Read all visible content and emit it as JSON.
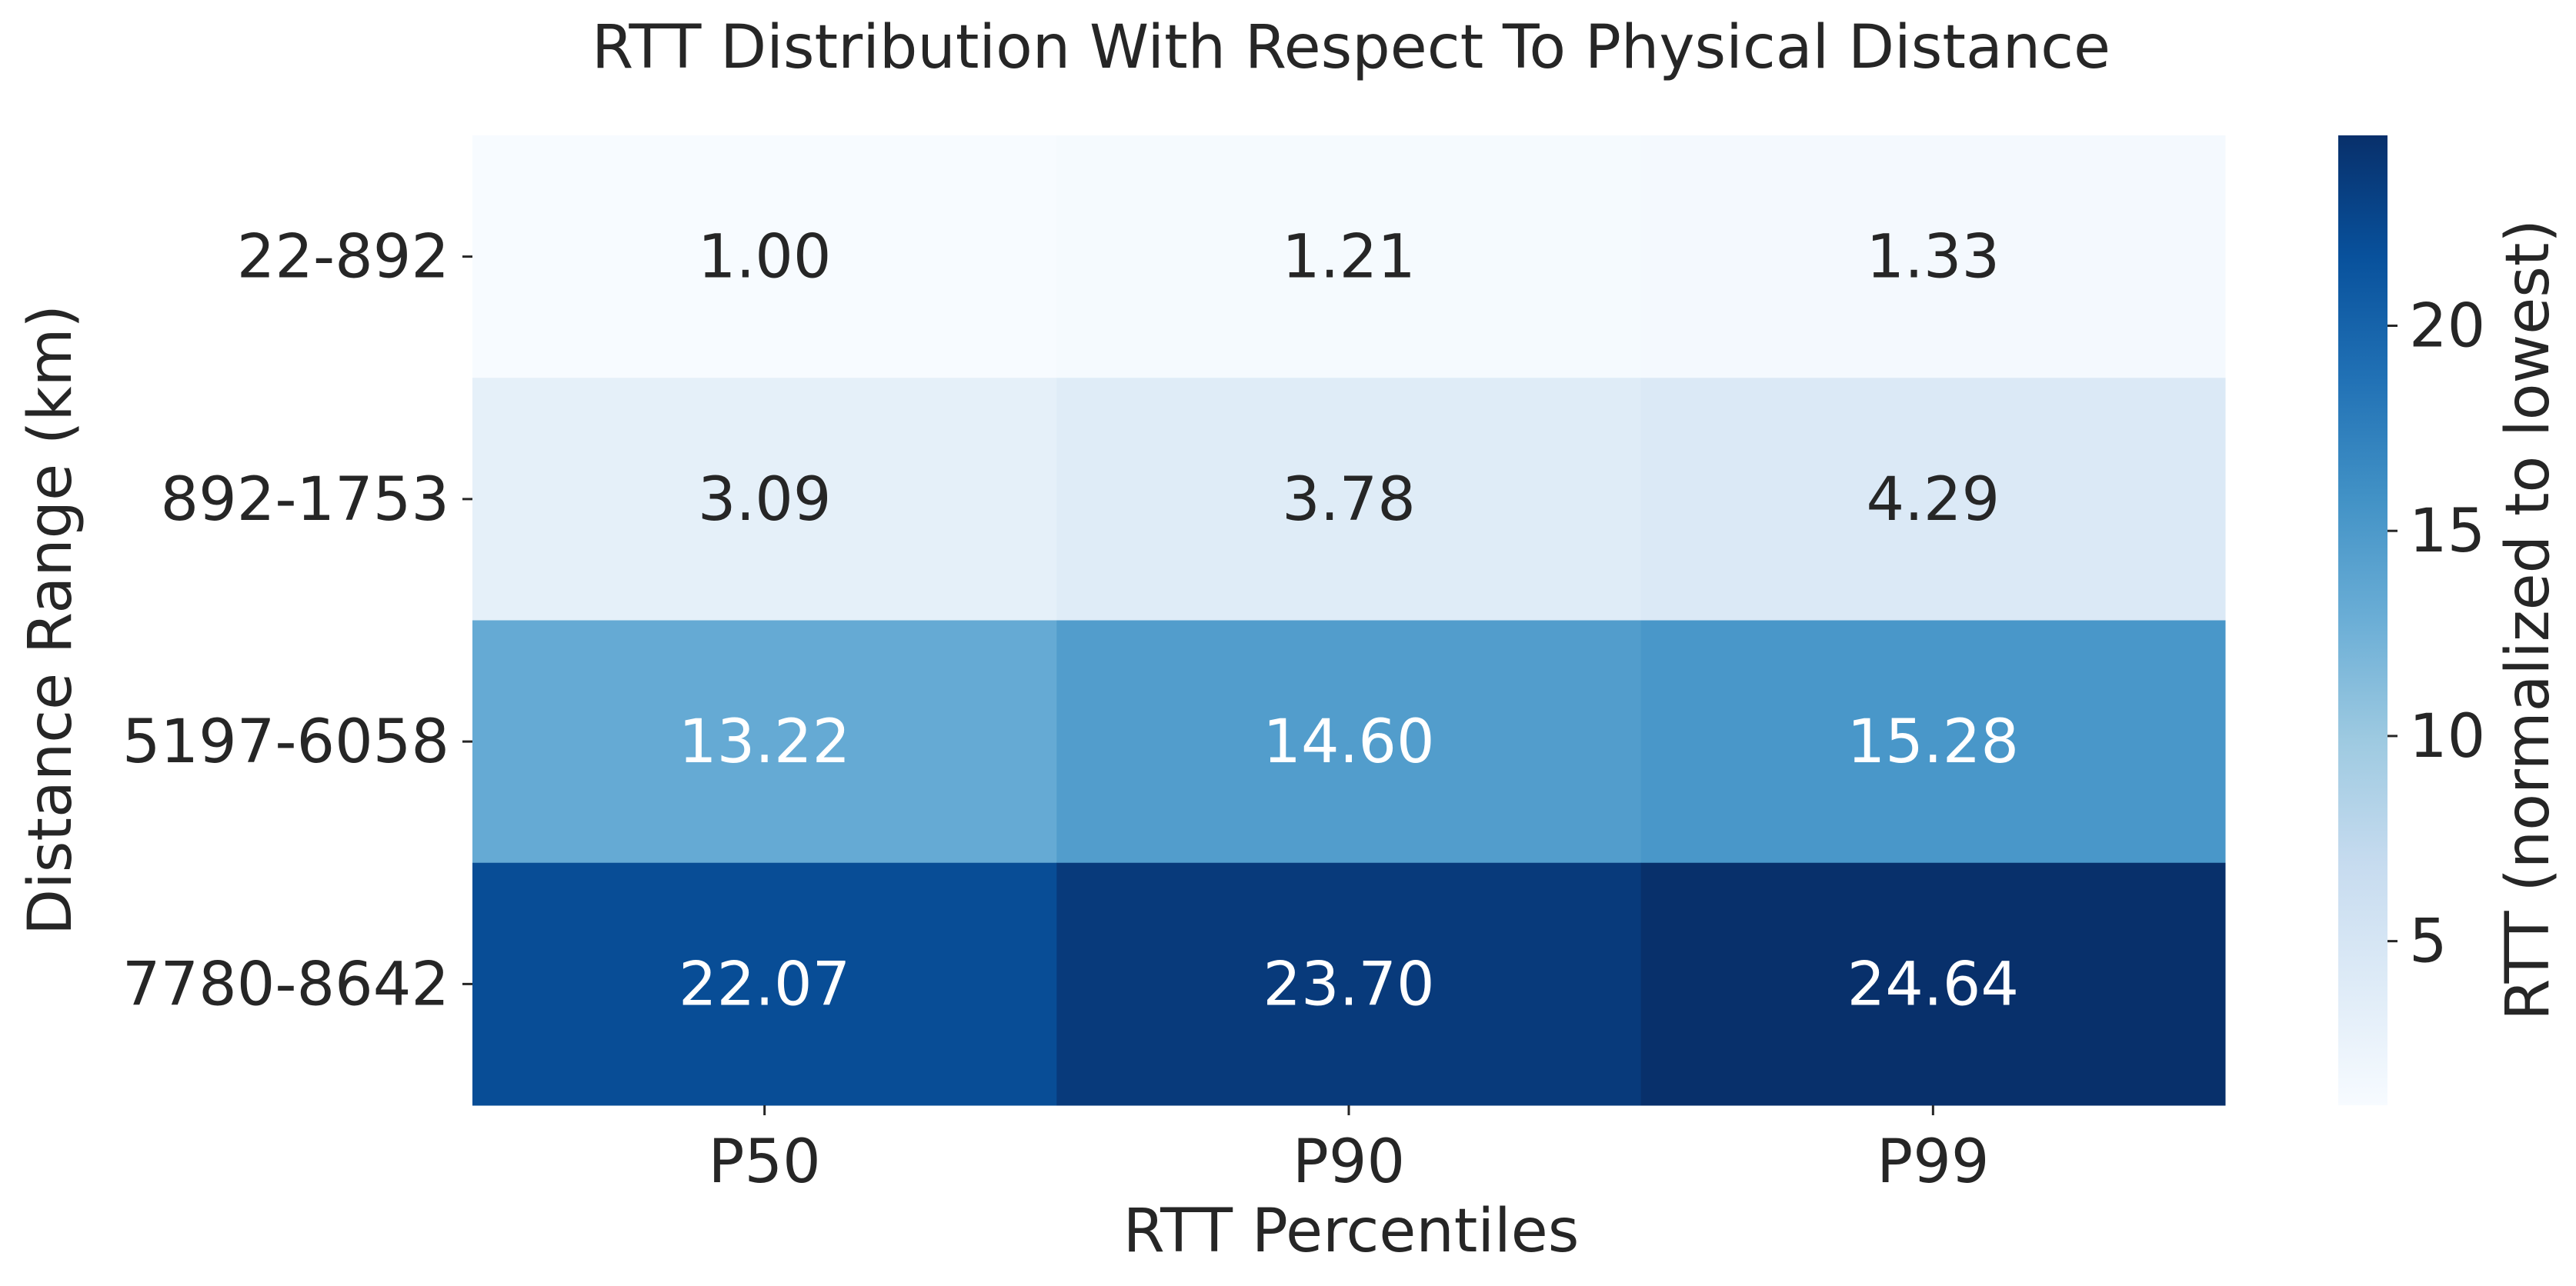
{
  "chart_data": {
    "type": "heatmap",
    "title": "RTT Distribution With Respect To Physical Distance",
    "xlabel": "RTT Percentiles",
    "ylabel": "Distance Range (km)",
    "x_categories": [
      "P50",
      "P90",
      "P99"
    ],
    "y_categories": [
      "22-892",
      "892-1753",
      "5197-6058",
      "7780-8642"
    ],
    "values": [
      [
        1.0,
        1.21,
        1.33
      ],
      [
        3.09,
        3.78,
        4.29
      ],
      [
        13.22,
        14.6,
        15.28
      ],
      [
        22.07,
        23.7,
        24.64
      ]
    ],
    "value_labels": [
      [
        "1.00",
        "1.21",
        "1.33"
      ],
      [
        "3.09",
        "3.78",
        "4.29"
      ],
      [
        "13.22",
        "14.60",
        "15.28"
      ],
      [
        "22.07",
        "23.70",
        "24.64"
      ]
    ],
    "colormap": "Blues",
    "colorbar": {
      "label": "RTT (normalized to lowest)",
      "range": [
        1.0,
        24.64
      ],
      "ticks": [
        5,
        10,
        15,
        20
      ],
      "tick_labels": [
        "5",
        "10",
        "15",
        "20"
      ]
    },
    "colors": {
      "low": "#f7fbff",
      "high": "#08306b",
      "text_dark": "#262626",
      "text_light": "#ffffff"
    }
  }
}
